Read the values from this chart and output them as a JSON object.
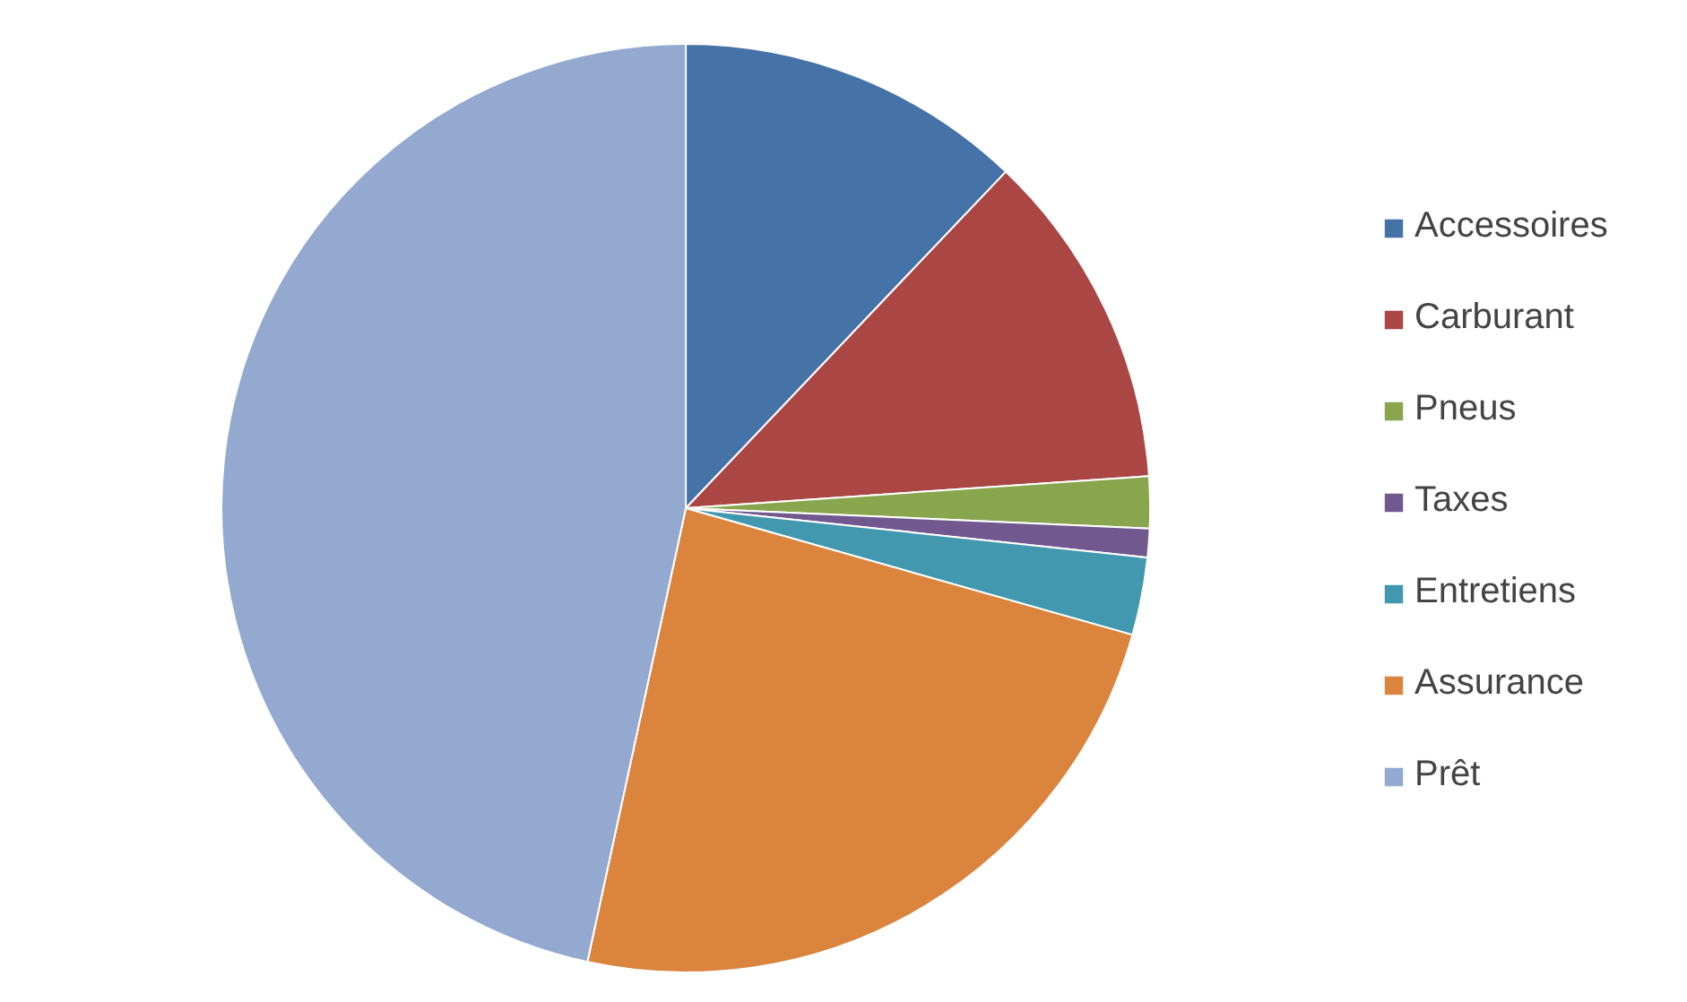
{
  "chart_data": {
    "type": "pie",
    "categories": [
      "Accessoires",
      "Carburant",
      "Pneus",
      "Taxes",
      "Entretiens",
      "Assurance",
      "Prêt"
    ],
    "values": [
      12.1,
      11.8,
      1.8,
      1.0,
      2.7,
      24.0,
      46.6
    ],
    "colors": [
      "#4572a7",
      "#aa4643",
      "#89a54e",
      "#71588f",
      "#4198af",
      "#db843d",
      "#93a9cf"
    ],
    "legend": "right"
  }
}
